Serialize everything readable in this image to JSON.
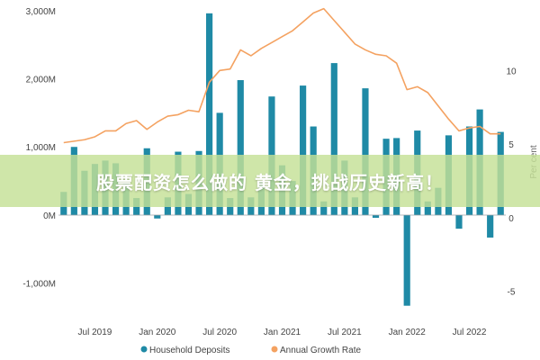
{
  "chart_data": {
    "type": "bar",
    "series": [
      {
        "name": "Household Deposits",
        "chart_type": "bar",
        "axis": "left",
        "values": [
          340,
          1000,
          650,
          750,
          800,
          760,
          480,
          250,
          980,
          -50,
          260,
          930,
          310,
          940,
          2960,
          1500,
          250,
          1980,
          260,
          500,
          1740,
          730,
          500,
          1900,
          1300,
          200,
          2230,
          800,
          260,
          1860,
          -40,
          1120,
          1130,
          -1330,
          1240,
          200,
          400,
          1170,
          -200,
          1300,
          1550,
          -330,
          1220
        ]
      },
      {
        "name": "Annual Growth Rate",
        "chart_type": "line",
        "axis": "right",
        "values": [
          5.1,
          5.2,
          5.3,
          5.5,
          5.9,
          5.9,
          6.4,
          6.6,
          6.0,
          6.5,
          6.9,
          7.0,
          7.3,
          7.2,
          9.2,
          10.0,
          10.1,
          11.4,
          11.0,
          11.5,
          11.9,
          12.3,
          12.7,
          13.3,
          13.9,
          14.2,
          13.4,
          12.6,
          11.8,
          11.4,
          11.1,
          11.0,
          10.5,
          8.7,
          8.9,
          8.5,
          7.6,
          6.7,
          5.9,
          6.1,
          6.2,
          5.7,
          5.7
        ]
      }
    ],
    "x_tick_labels": [
      "Jul 2019",
      "Jan 2020",
      "Jul 2020",
      "Jan 2021",
      "Jul 2021",
      "Jan 2022",
      "Jul 2022"
    ],
    "x_tick_index": [
      3,
      9,
      15,
      21,
      27,
      33,
      39
    ],
    "y_left_ticks": [
      "3,000M",
      "2,000M",
      "1,000M",
      "0M",
      "-1,000M"
    ],
    "y_left_values": [
      3000,
      2000,
      1000,
      0,
      -1000
    ],
    "y_right_ticks": [
      "10",
      "5",
      "0",
      "-5"
    ],
    "y_right_values": [
      10,
      5,
      0,
      -5
    ],
    "ylabel_right": "Per cent",
    "ylim_left": [
      -1400,
      3050
    ],
    "ylim_right": [
      -6.3,
      14.3
    ],
    "legend_position": "bottom",
    "grid": false
  },
  "legend": [
    {
      "label": "Household Deposits",
      "color": "#1f8aa6"
    },
    {
      "label": "Annual Growth Rate",
      "color": "#f4a261"
    }
  ],
  "overlay_text": "股票配资怎么做的 黄金，挑战历史新高！",
  "colors": {
    "bar": "#1f8aa6",
    "line": "#f4a261",
    "banner": "#c4e096"
  }
}
